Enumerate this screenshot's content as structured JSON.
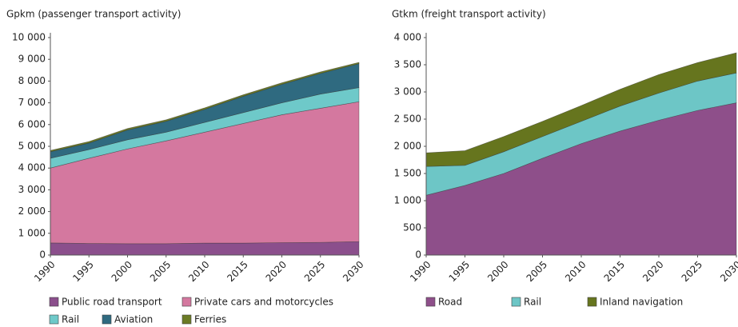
{
  "chart_data": [
    {
      "type": "area",
      "ylabel": "Gpkm (passenger transport activity)",
      "categories": [
        "1990",
        "1995",
        "2000",
        "2005",
        "2010",
        "2015",
        "2020",
        "2025",
        "2030"
      ],
      "ylim": [
        0,
        10000
      ],
      "yticks": [
        0,
        {
          "value": 1000,
          "label": "1 000"
        },
        {
          "value": 2000,
          "label": "2 000"
        },
        {
          "value": 3000,
          "label": "3 000"
        },
        {
          "value": 4000,
          "label": "4 000"
        },
        {
          "value": 5000,
          "label": "5 000"
        },
        {
          "value": 6000,
          "label": "6 000"
        },
        {
          "value": 7000,
          "label": "7 000"
        },
        {
          "value": 8000,
          "label": "8 000"
        },
        {
          "value": 9000,
          "label": "9 000"
        },
        {
          "value": 10000,
          "label": "10 000"
        }
      ],
      "series": [
        {
          "name": "Public road transport",
          "color": "#8b4f8c",
          "values": [
            560,
            530,
            520,
            520,
            550,
            550,
            570,
            580,
            620
          ]
        },
        {
          "name": "Private cars and motorcycles",
          "color": "#d4789f",
          "values": [
            3440,
            3920,
            4360,
            4730,
            5100,
            5500,
            5880,
            6170,
            6430
          ]
        },
        {
          "name": "Rail",
          "color": "#6ec9c9",
          "values": [
            450,
            400,
            420,
            400,
            450,
            500,
            550,
            650,
            650
          ]
        },
        {
          "name": "Aviation",
          "color": "#2f6a80",
          "values": [
            300,
            300,
            450,
            500,
            600,
            750,
            850,
            950,
            1100
          ]
        },
        {
          "name": "Ferries",
          "color": "#6b7b25",
          "values": [
            60,
            70,
            70,
            70,
            70,
            70,
            70,
            70,
            60
          ]
        }
      ]
    },
    {
      "type": "area",
      "ylabel": "Gtkm (freight transport activity)",
      "categories": [
        "1990",
        "1995",
        "2000",
        "2005",
        "2010",
        "2015",
        "2020",
        "2025",
        "2030"
      ],
      "ylim": [
        0,
        4000
      ],
      "yticks": [
        0,
        500,
        {
          "value": 1000,
          "label": "1 000"
        },
        {
          "value": 1500,
          "label": "1 500"
        },
        {
          "value": 2000,
          "label": "2 000"
        },
        {
          "value": 2500,
          "label": "2 500"
        },
        {
          "value": 3000,
          "label": "3 000"
        },
        {
          "value": 3500,
          "label": "3 500"
        },
        {
          "value": 4000,
          "label": "4 000"
        }
      ],
      "series": [
        {
          "name": "Road",
          "color": "#8e4f8a",
          "values": [
            1100,
            1280,
            1500,
            1780,
            2050,
            2280,
            2480,
            2660,
            2800
          ]
        },
        {
          "name": "Rail",
          "color": "#6dc6c6",
          "values": [
            530,
            370,
            400,
            400,
            410,
            460,
            500,
            540,
            550
          ]
        },
        {
          "name": "Inland navigation",
          "color": "#66751e",
          "values": [
            250,
            270,
            280,
            280,
            290,
            310,
            340,
            340,
            370
          ]
        }
      ]
    }
  ]
}
